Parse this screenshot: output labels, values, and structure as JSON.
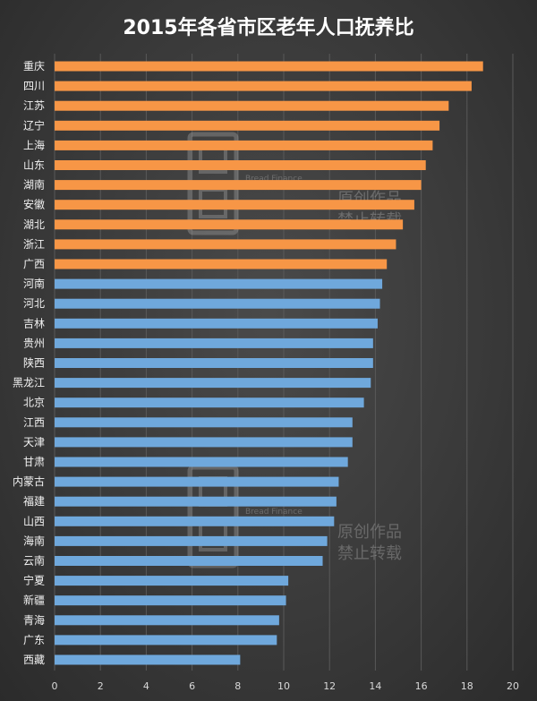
{
  "chart_data": {
    "type": "bar",
    "orientation": "horizontal",
    "title": "2015年各省市区老年人口抚养比",
    "categories": [
      "重庆",
      "四川",
      "江苏",
      "辽宁",
      "上海",
      "山东",
      "湖南",
      "安徽",
      "湖北",
      "浙江",
      "广西",
      "河南",
      "河北",
      "吉林",
      "贵州",
      "陕西",
      "黑龙江",
      "北京",
      "江西",
      "天津",
      "甘肃",
      "内蒙古",
      "福建",
      "山西",
      "海南",
      "云南",
      "宁夏",
      "新疆",
      "青海",
      "广东",
      "西藏"
    ],
    "values": [
      18.7,
      18.2,
      17.2,
      16.8,
      16.5,
      16.2,
      16.0,
      15.7,
      15.2,
      14.9,
      14.5,
      14.3,
      14.2,
      14.1,
      13.9,
      13.9,
      13.8,
      13.5,
      13.0,
      13.0,
      12.8,
      12.4,
      12.3,
      12.2,
      11.9,
      11.7,
      10.2,
      10.1,
      9.8,
      9.7,
      8.1
    ],
    "highlight_count": 11,
    "xlim": [
      0,
      20
    ],
    "xticks": [
      0,
      2,
      4,
      6,
      8,
      10,
      12,
      14,
      16,
      18,
      20
    ],
    "grid": true,
    "legend": "none",
    "colors": {
      "highlight": "#f79646",
      "normal": "#6fa8dc",
      "background": "#3c3c3c"
    }
  },
  "watermark": {
    "line1": "原创作品",
    "line2": "禁止转载",
    "brand": "Bread Finance"
  }
}
